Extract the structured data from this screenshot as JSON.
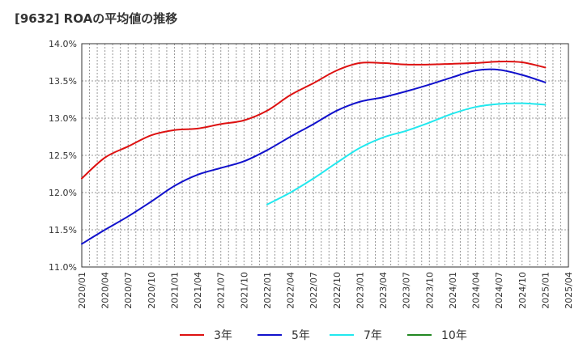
{
  "chart_data": {
    "type": "line",
    "title": "[9632]  ROAの平均値の推移",
    "xlabel": "",
    "ylabel": "",
    "ylim": [
      11.0,
      14.0
    ],
    "y_ticks": [
      "11.0%",
      "11.5%",
      "12.0%",
      "12.5%",
      "13.0%",
      "13.5%",
      "14.0%"
    ],
    "x_ticks": [
      "2020/01",
      "2020/04",
      "2020/07",
      "2020/10",
      "2021/01",
      "2021/04",
      "2021/07",
      "2021/10",
      "2022/01",
      "2022/04",
      "2022/07",
      "2022/10",
      "2023/01",
      "2023/04",
      "2023/07",
      "2023/10",
      "2024/01",
      "2024/04",
      "2024/07",
      "2024/10",
      "2025/01",
      "2025/04"
    ],
    "grid": true,
    "legend_position": "bottom",
    "series": [
      {
        "name": "3年",
        "color": "#dd1111",
        "points": [
          [
            "2020/01",
            12.19
          ],
          [
            "2020/04",
            12.47
          ],
          [
            "2020/07",
            12.62
          ],
          [
            "2020/10",
            12.77
          ],
          [
            "2021/01",
            12.84
          ],
          [
            "2021/04",
            12.86
          ],
          [
            "2021/07",
            12.92
          ],
          [
            "2021/10",
            12.97
          ],
          [
            "2022/01",
            13.1
          ],
          [
            "2022/04",
            13.31
          ],
          [
            "2022/07",
            13.47
          ],
          [
            "2022/10",
            13.64
          ],
          [
            "2023/01",
            13.74
          ],
          [
            "2023/04",
            13.74
          ],
          [
            "2023/07",
            13.72
          ],
          [
            "2023/10",
            13.72
          ],
          [
            "2024/01",
            13.73
          ],
          [
            "2024/04",
            13.74
          ],
          [
            "2024/07",
            13.76
          ],
          [
            "2024/10",
            13.75
          ],
          [
            "2025/01",
            13.68
          ]
        ]
      },
      {
        "name": "5年",
        "color": "#1111cc",
        "points": [
          [
            "2020/01",
            11.31
          ],
          [
            "2020/04",
            11.5
          ],
          [
            "2020/07",
            11.68
          ],
          [
            "2020/10",
            11.88
          ],
          [
            "2021/01",
            12.09
          ],
          [
            "2021/04",
            12.24
          ],
          [
            "2021/07",
            12.33
          ],
          [
            "2021/10",
            12.42
          ],
          [
            "2022/01",
            12.57
          ],
          [
            "2022/04",
            12.75
          ],
          [
            "2022/07",
            12.92
          ],
          [
            "2022/10",
            13.1
          ],
          [
            "2023/01",
            13.22
          ],
          [
            "2023/04",
            13.28
          ],
          [
            "2023/07",
            13.36
          ],
          [
            "2023/10",
            13.45
          ],
          [
            "2024/01",
            13.55
          ],
          [
            "2024/04",
            13.64
          ],
          [
            "2024/07",
            13.65
          ],
          [
            "2024/10",
            13.58
          ],
          [
            "2025/01",
            13.48
          ]
        ]
      },
      {
        "name": "7年",
        "color": "#22e8ee",
        "points": [
          [
            "2022/01",
            11.84
          ],
          [
            "2022/04",
            12.0
          ],
          [
            "2022/07",
            12.19
          ],
          [
            "2022/10",
            12.4
          ],
          [
            "2023/01",
            12.6
          ],
          [
            "2023/04",
            12.74
          ],
          [
            "2023/07",
            12.83
          ],
          [
            "2023/10",
            12.94
          ],
          [
            "2024/01",
            13.06
          ],
          [
            "2024/04",
            13.15
          ],
          [
            "2024/07",
            13.19
          ],
          [
            "2024/10",
            13.2
          ],
          [
            "2025/01",
            13.18
          ]
        ]
      },
      {
        "name": "10年",
        "color": "#228822",
        "points": []
      }
    ]
  }
}
